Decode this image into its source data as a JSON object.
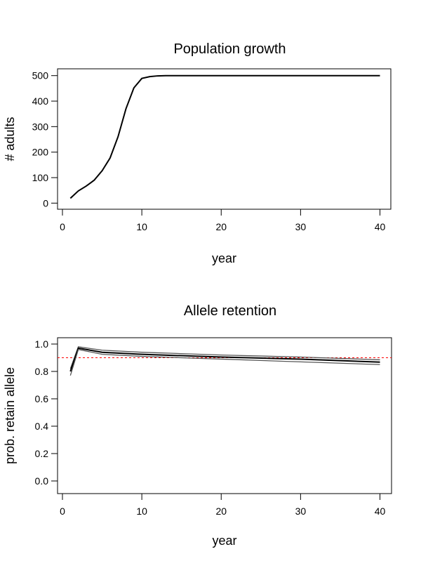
{
  "chart_data": [
    {
      "type": "line",
      "title": "Population growth",
      "xlabel": "year",
      "ylabel": "# adults",
      "xlim": [
        0,
        40
      ],
      "ylim": [
        0,
        500
      ],
      "xticks": [
        0,
        10,
        20,
        30,
        40
      ],
      "yticks": [
        0,
        100,
        200,
        300,
        400,
        500
      ],
      "grid": false,
      "series": [
        {
          "x": [
            1,
            2,
            3,
            4,
            5,
            6,
            7,
            8,
            9,
            10,
            11,
            12,
            13,
            40
          ],
          "y": [
            19,
            48,
            67,
            90,
            127,
            177,
            260,
            370,
            452,
            489,
            496,
            499,
            500,
            500
          ],
          "color": "#000000"
        }
      ]
    },
    {
      "type": "line",
      "title": "Allele retention",
      "xlabel": "year",
      "ylabel": "prob. retain allele",
      "xlim": [
        0,
        40
      ],
      "ylim": [
        0,
        1
      ],
      "xticks": [
        0,
        10,
        20,
        30,
        40
      ],
      "yticks": [
        "0.0",
        "0.2",
        "0.4",
        "0.6",
        "0.8",
        "1.0"
      ],
      "grid": false,
      "series": [
        {
          "x": [
            1,
            2,
            5,
            10,
            20,
            30,
            40
          ],
          "y": [
            0.82,
            0.98,
            0.955,
            0.94,
            0.92,
            0.905,
            0.885
          ],
          "color": "#555555"
        },
        {
          "x": [
            1,
            2,
            5,
            10,
            20,
            30,
            40
          ],
          "y": [
            0.8,
            0.97,
            0.94,
            0.925,
            0.905,
            0.89,
            0.868
          ],
          "color": "#000000"
        },
        {
          "x": [
            1,
            2,
            5,
            10,
            20,
            30,
            40
          ],
          "y": [
            0.77,
            0.96,
            0.925,
            0.91,
            0.89,
            0.87,
            0.85
          ],
          "color": "#555555"
        }
      ],
      "reference_line": {
        "y": 0.9,
        "color": "#ff0000",
        "style": "dashed"
      }
    }
  ]
}
